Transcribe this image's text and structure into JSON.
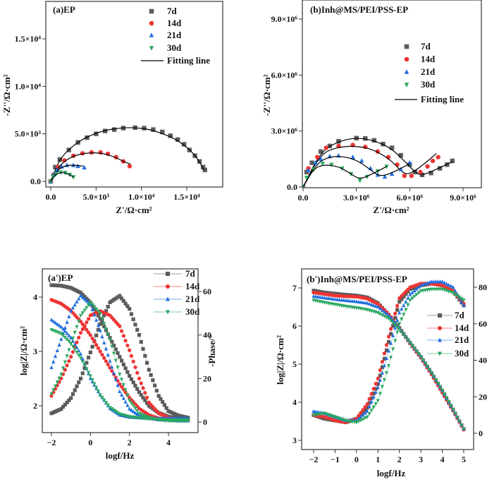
{
  "chart_data": [
    {
      "id": "a",
      "type": "scatter",
      "title": "(a)EP",
      "xlabel": "Z'/Ω·cm²",
      "ylabel": "-Z''/Ω·cm²",
      "xlim": [
        -500,
        19000
      ],
      "ylim": [
        -600,
        19000
      ],
      "xticks": [
        0,
        5000,
        10000,
        15000
      ],
      "xtick_labels": [
        "0.0",
        "5.0×10³",
        "1.0×10⁴",
        "1.5×10⁴"
      ],
      "yticks": [
        0,
        5000,
        10000,
        15000
      ],
      "ytick_labels": [
        "0.0",
        "5.0×10³",
        "1.0×10⁴",
        "1.5×10⁴"
      ],
      "legend_position": "top-right",
      "fit_label": "Fitting line",
      "series": [
        {
          "name": "7d",
          "marker": "square",
          "color": "#5b5b5b",
          "x": [
            0,
            500,
            1000,
            2000,
            3000,
            4000,
            5000,
            6000,
            7000,
            8000,
            9300,
            10300,
            11300,
            12300,
            13200,
            14000,
            14700,
            15300,
            15900,
            16400,
            16800,
            17000
          ],
          "y": [
            0,
            1500,
            2300,
            3300,
            4100,
            4600,
            5000,
            5300,
            5450,
            5600,
            5650,
            5600,
            5450,
            5200,
            4800,
            4400,
            3900,
            3300,
            2700,
            2100,
            1500,
            1200
          ],
          "fit_x": [
            0,
            1000,
            2500,
            4000,
            6000,
            8000,
            9500,
            11000,
            13000,
            14500,
            15800,
            16500,
            16900
          ],
          "fit_y": [
            0,
            2400,
            3800,
            4700,
            5400,
            5650,
            5650,
            5450,
            4800,
            4000,
            2900,
            1900,
            1200
          ]
        },
        {
          "name": "14d",
          "marker": "circle",
          "color": "#ee3434",
          "x": [
            0,
            300,
            800,
            1500,
            2500,
            3500,
            4500,
            5500,
            6300,
            7200,
            8000,
            8700
          ],
          "y": [
            0,
            700,
            1500,
            2200,
            2700,
            2950,
            3050,
            3050,
            2900,
            2550,
            2100,
            1600
          ],
          "fit_x": [
            0,
            1000,
            2500,
            4000,
            5500,
            7000,
            8000,
            8800
          ],
          "fit_y": [
            0,
            1800,
            2700,
            3000,
            3000,
            2600,
            2100,
            1800
          ]
        },
        {
          "name": "21d",
          "marker": "triangle-up",
          "color": "#1f6fe0",
          "x": [
            0,
            300,
            700,
            1200,
            1800,
            2500,
            3000,
            3700
          ],
          "y": [
            0,
            700,
            1200,
            1550,
            1700,
            1700,
            1600,
            1450
          ],
          "fit_x": [
            0,
            800,
            1800,
            2700,
            3600
          ],
          "fit_y": [
            0,
            1300,
            1700,
            1700,
            1600
          ]
        },
        {
          "name": "30d",
          "marker": "triangle-down",
          "color": "#2aa860",
          "x": [
            0,
            250,
            600,
            1100,
            1600,
            2100,
            2500
          ],
          "y": [
            0,
            500,
            800,
            950,
            900,
            700,
            450
          ],
          "fit_x": [
            0,
            600,
            1300,
            2000,
            2500
          ],
          "fit_y": [
            0,
            800,
            950,
            750,
            450
          ]
        }
      ]
    },
    {
      "id": "b",
      "type": "scatter",
      "title": "(b)Inh@MS/PEI/PSS-EP",
      "xlabel": "Z'/Ω·cm²",
      "ylabel": "-Z''/Ω·cm²",
      "units_multiplier": 1000000,
      "xlim": [
        0,
        10
      ],
      "ylim": [
        0,
        10
      ],
      "xticks": [
        0,
        3,
        6,
        9
      ],
      "xtick_labels": [
        "0.0",
        "3.0×10⁶",
        "6.0×10⁶",
        "9.0×10⁶"
      ],
      "yticks": [
        0,
        3,
        6,
        9
      ],
      "ytick_labels": [
        "0.0",
        "3.0×10⁶",
        "6.0×10⁶",
        "9.0×10⁶"
      ],
      "legend_position": "center-right",
      "fit_label": "Fitting line",
      "series": [
        {
          "name": "7d",
          "marker": "square",
          "color": "#5b5b5b",
          "x": [
            0,
            0.2,
            0.5,
            1,
            1.5,
            2,
            3,
            3.5,
            4,
            4.5,
            5,
            5.5,
            6,
            6.3,
            6.7,
            7.2,
            7.7,
            8.1,
            8.4
          ],
          "y": [
            0,
            0.8,
            1.3,
            1.9,
            2.2,
            2.45,
            2.62,
            2.6,
            2.5,
            2.3,
            2.1,
            1.7,
            1.2,
            0.8,
            0.65,
            0.75,
            1.0,
            1.2,
            1.4
          ],
          "fit_x": [
            0,
            1,
            2,
            3,
            4,
            5,
            5.8,
            6.4,
            6.8,
            7.5,
            8.4
          ],
          "fit_y": [
            0,
            1.9,
            2.45,
            2.65,
            2.5,
            2.05,
            1.3,
            0.7,
            0.65,
            0.95,
            1.35
          ]
        },
        {
          "name": "14d",
          "marker": "circle",
          "color": "#ee3434",
          "x": [
            0,
            0.3,
            0.8,
            1.3,
            2,
            2.8,
            3.5,
            4.2,
            4.8,
            5.3,
            5.7,
            6.1,
            6.6,
            7.0,
            7.3,
            7.6
          ],
          "y": [
            0,
            1.0,
            1.6,
            2.1,
            2.2,
            2.25,
            2.15,
            1.9,
            1.6,
            1.2,
            0.6,
            0.6,
            0.8,
            1.1,
            1.4,
            1.6
          ],
          "fit_x": [
            0,
            1,
            2,
            3,
            4,
            5,
            5.7,
            6.2,
            6.9,
            7.5
          ],
          "fit_y": [
            0,
            1.8,
            2.15,
            2.2,
            2.0,
            1.4,
            0.65,
            0.8,
            1.3,
            1.8
          ]
        },
        {
          "name": "21d",
          "marker": "triangle-up",
          "color": "#1f6fe0",
          "x": [
            0,
            0.3,
            0.7,
            1,
            1.5,
            2,
            2.8,
            3.3,
            3.8,
            4.2,
            4.6,
            5.0,
            5.5,
            6.0
          ],
          "y": [
            0,
            0.9,
            1.3,
            1.5,
            1.65,
            1.68,
            1.6,
            1.4,
            1.0,
            0.65,
            0.55,
            0.7,
            0.95,
            1.3
          ],
          "fit_x": [
            0,
            0.8,
            1.5,
            2.2,
            3,
            3.7,
            4.3,
            5,
            6
          ],
          "fit_y": [
            0,
            1.3,
            1.62,
            1.65,
            1.45,
            1.0,
            0.55,
            0.75,
            1.25
          ]
        },
        {
          "name": "30d",
          "marker": "triangle-down",
          "color": "#2aa860",
          "x": [
            0,
            0.2,
            0.6,
            1.1,
            1.6,
            2.2,
            2.7,
            3.2,
            3.6,
            4.2,
            4.7
          ],
          "y": [
            0,
            0.5,
            0.95,
            1.25,
            1.2,
            1.0,
            0.7,
            0.35,
            0.55,
            0.85,
            1.1
          ],
          "fit_x": [
            0,
            0.6,
            1.2,
            2,
            2.7,
            3.2,
            4,
            4.7
          ],
          "fit_y": [
            0,
            1.0,
            1.2,
            1.1,
            0.7,
            0.4,
            0.75,
            1.1
          ]
        }
      ]
    },
    {
      "id": "a2",
      "type": "line",
      "title": "(a')EP",
      "xlabel": "logf/Hz",
      "ylabel": "log|Z|/Ω·cm²",
      "ylabel_right": "-Phase/°",
      "xlim": [
        -2.5,
        5.5
      ],
      "ylim": [
        1.5,
        4.5
      ],
      "ylim_right": [
        -5,
        70
      ],
      "xticks": [
        -2,
        0,
        2,
        4
      ],
      "xtick_labels": [
        "−2",
        "0",
        "2",
        "4"
      ],
      "yticks": [
        2,
        3,
        4
      ],
      "ytick_labels": [
        "2",
        "3",
        "4"
      ],
      "yticks_right": [
        0,
        20,
        40,
        60
      ],
      "ytick_labels_right": [
        "0",
        "20",
        "40",
        "60"
      ],
      "legend_position": "top-right",
      "x": [
        -2,
        -1.5,
        -1,
        -0.5,
        0,
        0.5,
        1,
        1.5,
        2,
        2.5,
        3,
        3.5,
        4,
        4.5,
        5
      ],
      "series": [
        {
          "name": "7d",
          "marker": "square",
          "color": "#5b5b5b",
          "logZ": [
            4.22,
            4.21,
            4.17,
            4.08,
            3.9,
            3.6,
            3.25,
            2.9,
            2.55,
            2.25,
            2.0,
            1.87,
            1.8,
            1.77,
            1.76
          ],
          "phase": [
            4,
            6,
            11,
            20,
            32,
            45,
            55,
            58,
            52,
            40,
            24,
            12,
            5,
            3,
            2
          ]
        },
        {
          "name": "14d",
          "marker": "circle",
          "color": "#ee3434",
          "logZ": [
            3.95,
            3.88,
            3.75,
            3.55,
            3.3,
            3.0,
            2.7,
            2.4,
            2.15,
            1.95,
            1.83,
            1.77,
            1.74,
            1.73,
            1.73
          ],
          "phase": [
            12,
            20,
            30,
            41,
            49,
            51,
            49,
            44,
            33,
            20,
            9,
            4,
            2,
            1,
            1
          ]
        },
        {
          "name": "21d",
          "marker": "triangle-up",
          "color": "#1f6fe0",
          "logZ": [
            3.58,
            3.45,
            3.25,
            2.95,
            2.5,
            2.2,
            1.95,
            1.83,
            1.79,
            1.78,
            1.77,
            1.77,
            1.77,
            1.77,
            1.77
          ],
          "phase": [
            25,
            38,
            51,
            58,
            54,
            42,
            28,
            14,
            6,
            3,
            2,
            1,
            1,
            0.5,
            0.5
          ]
        },
        {
          "name": "30d",
          "marker": "triangle-down",
          "color": "#2aa860",
          "logZ": [
            3.4,
            3.33,
            3.15,
            2.88,
            2.55,
            2.2,
            1.97,
            1.85,
            1.8,
            1.78,
            1.76,
            1.75,
            1.74,
            1.74,
            1.74
          ],
          "phase": [
            13,
            22,
            36,
            49,
            55,
            50,
            38,
            22,
            10,
            4,
            2,
            1,
            0.5,
            0.5,
            0.5
          ]
        }
      ]
    },
    {
      "id": "b2",
      "type": "line",
      "title": "(b')Inh@MS/PEI/PSS-EP",
      "xlabel": "logf/Hz",
      "ylabel": "log|Z|/Ω·cm²",
      "xlim": [
        -2.5,
        5.5
      ],
      "ylim": [
        2.75,
        7.5
      ],
      "ylim_right": [
        -9,
        90
      ],
      "xticks": [
        -2,
        -1,
        0,
        1,
        2,
        3,
        4,
        5
      ],
      "xtick_labels": [
        "−2",
        "−1",
        "0",
        "1",
        "2",
        "3",
        "4",
        "5"
      ],
      "yticks": [
        3,
        4,
        5,
        6,
        7
      ],
      "ytick_labels": [
        "3",
        "4",
        "5",
        "6",
        "7"
      ],
      "yticks_right": [
        0,
        20,
        40,
        60,
        80
      ],
      "ytick_labels_right": [
        "0",
        "20",
        "40",
        "60",
        "80"
      ],
      "legend_position": "center-right",
      "x": [
        -2,
        -1.5,
        -1,
        -0.5,
        0,
        0.5,
        1,
        1.5,
        2,
        2.5,
        3,
        3.5,
        4,
        4.5,
        5
      ],
      "series": [
        {
          "name": "7d",
          "marker": "square",
          "color": "#5b5b5b",
          "logZ": [
            6.93,
            6.88,
            6.85,
            6.82,
            6.8,
            6.75,
            6.6,
            6.3,
            5.95,
            5.55,
            5.18,
            4.75,
            4.28,
            3.8,
            3.3
          ],
          "phase": [
            10,
            8,
            7,
            6,
            8,
            14,
            27,
            50,
            72,
            79,
            81,
            82,
            81,
            78,
            70
          ]
        },
        {
          "name": "14d",
          "marker": "circle",
          "color": "#ee3434",
          "logZ": [
            6.88,
            6.84,
            6.8,
            6.78,
            6.77,
            6.72,
            6.58,
            6.3,
            5.95,
            5.55,
            5.17,
            4.73,
            4.25,
            3.78,
            3.28
          ],
          "phase": [
            10,
            9,
            7,
            6,
            8,
            16,
            30,
            53,
            74,
            80,
            82,
            82,
            81,
            78,
            71
          ]
        },
        {
          "name": "21d",
          "marker": "triangle-up",
          "color": "#1f6fe0",
          "logZ": [
            6.78,
            6.74,
            6.7,
            6.67,
            6.64,
            6.6,
            6.5,
            6.28,
            5.95,
            5.57,
            5.2,
            4.77,
            4.3,
            3.8,
            3.3
          ],
          "phase": [
            12,
            11,
            9,
            7,
            7,
            12,
            25,
            45,
            66,
            76,
            81,
            83,
            83,
            80,
            70
          ]
        },
        {
          "name": "30d",
          "marker": "triangle-down",
          "color": "#2aa860",
          "logZ": [
            6.68,
            6.62,
            6.57,
            6.52,
            6.48,
            6.43,
            6.35,
            6.2,
            5.92,
            5.57,
            5.2,
            4.78,
            4.32,
            3.82,
            3.3
          ],
          "phase": [
            10,
            11,
            9,
            7,
            6,
            9,
            18,
            37,
            60,
            73,
            78,
            79,
            79,
            77,
            73
          ]
        }
      ]
    }
  ]
}
